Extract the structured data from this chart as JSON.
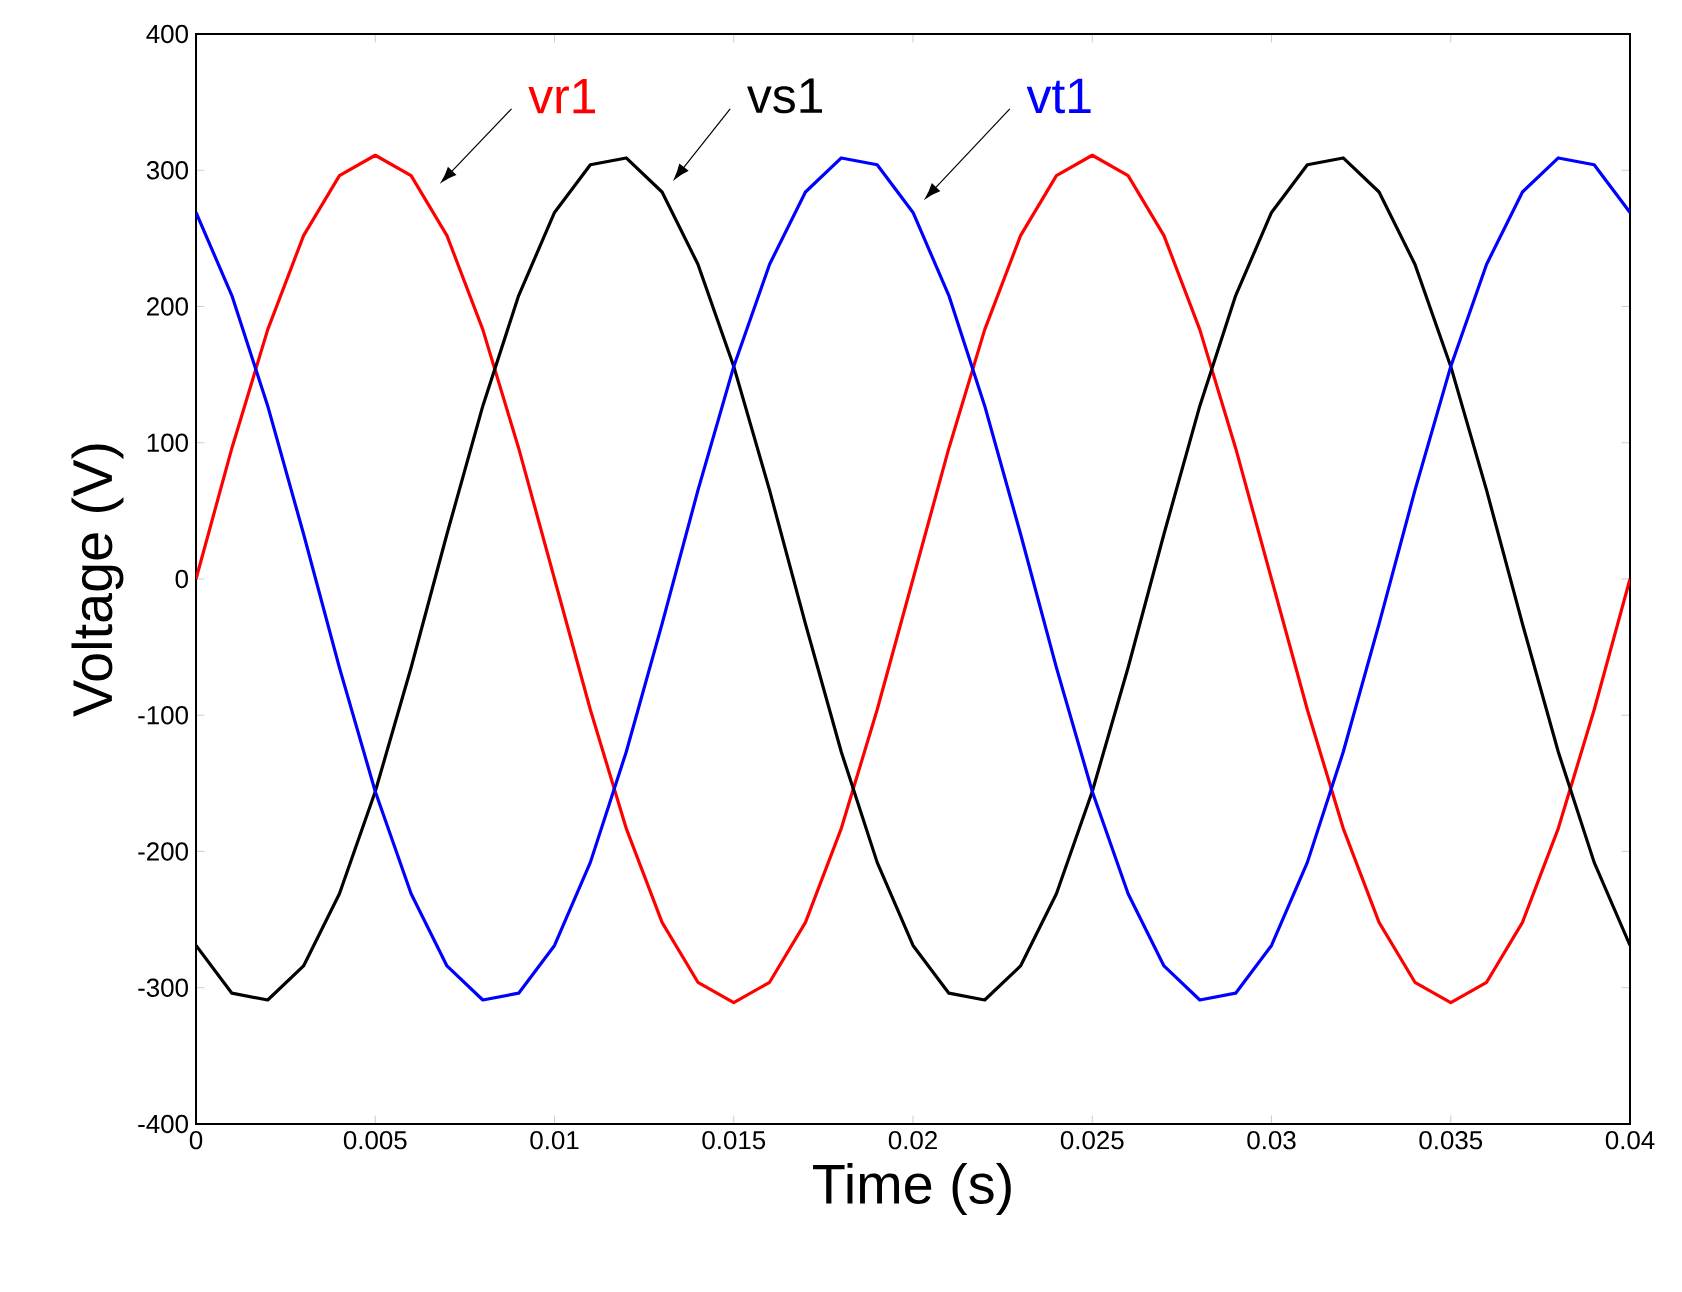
{
  "chart_data": {
    "type": "line",
    "xlabel": "Time (s)",
    "ylabel": "Voltage (V)",
    "x": [
      0,
      0.001,
      0.002,
      0.003,
      0.004,
      0.005,
      0.006,
      0.007,
      0.008,
      0.009,
      0.01,
      0.011,
      0.012,
      0.013,
      0.014,
      0.015,
      0.016,
      0.017,
      0.018,
      0.019,
      0.02,
      0.021,
      0.022,
      0.023,
      0.024,
      0.025,
      0.026,
      0.027,
      0.028,
      0.029,
      0.03,
      0.031,
      0.032,
      0.033,
      0.034,
      0.035,
      0.036,
      0.037,
      0.038,
      0.039,
      0.04
    ],
    "series": [
      {
        "name": "vr1",
        "color": "#ff0000",
        "values": [
          0,
          96,
          183,
          252,
          296,
          311,
          296,
          252,
          183,
          96,
          0,
          -96,
          -183,
          -252,
          -296,
          -311,
          -296,
          -252,
          -183,
          -96,
          0,
          96,
          183,
          252,
          296,
          311,
          296,
          252,
          183,
          96,
          0,
          -96,
          -183,
          -252,
          -296,
          -311,
          -296,
          -252,
          -183,
          -96,
          0
        ]
      },
      {
        "name": "vs1",
        "color": "#000000",
        "values": [
          -269,
          -304,
          -309,
          -284,
          -231,
          -156,
          -65,
          33,
          127,
          208,
          269,
          304,
          309,
          284,
          231,
          156,
          65,
          -33,
          -127,
          -208,
          -269,
          -304,
          -309,
          -284,
          -231,
          -156,
          -65,
          33,
          127,
          208,
          269,
          304,
          309,
          284,
          231,
          156,
          65,
          -33,
          -127,
          -208,
          -269
        ]
      },
      {
        "name": "vt1",
        "color": "#0000ff",
        "values": [
          269,
          208,
          127,
          33,
          -65,
          -156,
          -231,
          -284,
          -309,
          -304,
          -269,
          -208,
          -127,
          -33,
          65,
          156,
          231,
          284,
          309,
          304,
          269,
          208,
          127,
          33,
          -65,
          -156,
          -231,
          -284,
          -309,
          -304,
          -269,
          -208,
          -127,
          -33,
          65,
          156,
          231,
          284,
          309,
          304,
          269
        ]
      }
    ],
    "xlim": [
      0,
      0.04
    ],
    "ylim": [
      -400,
      400
    ],
    "xticks": [
      0,
      0.005,
      0.01,
      0.015,
      0.02,
      0.025,
      0.03,
      0.035,
      0.04
    ],
    "yticks": [
      -400,
      -300,
      -200,
      -100,
      0,
      100,
      200,
      300,
      400
    ],
    "grid": false,
    "marker": "none",
    "line_style": "solid"
  }
}
